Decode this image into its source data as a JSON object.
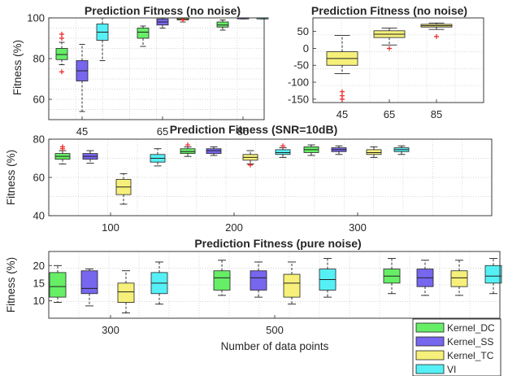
{
  "chart_data": [
    {
      "type": "box",
      "title": "Prediction Fitness (no noise)",
      "ylabel": "Fitness (%)",
      "xlabel": "",
      "ylim": [
        50,
        100
      ],
      "yticks": [
        60,
        80,
        100
      ],
      "x_ticks": [
        "45",
        "65",
        "85"
      ],
      "grid": true,
      "groups": [
        {
          "label": "45",
          "boxes": [
            {
              "series": "Kernel_DC",
              "whisker_low": 77,
              "q1": 79.5,
              "median": 82,
              "q3": 85,
              "whisker_high": 88,
              "outliers": [
                73.5,
                90,
                92
              ]
            },
            {
              "series": "Kernel_SS",
              "whisker_low": 54,
              "q1": 69,
              "median": 74,
              "q3": 79,
              "whisker_high": 87,
              "outliers": []
            },
            {
              "series": "VI",
              "whisker_low": 79,
              "q1": 89,
              "median": 93,
              "q3": 97,
              "whisker_high": 100,
              "outliers": []
            }
          ]
        },
        {
          "label": "65",
          "boxes": [
            {
              "series": "Kernel_DC",
              "whisker_low": 86,
              "q1": 90,
              "median": 93,
              "q3": 95,
              "whisker_high": 96,
              "outliers": []
            },
            {
              "series": "Kernel_SS",
              "whisker_low": 95,
              "q1": 96.5,
              "median": 98,
              "q3": 99.5,
              "whisker_high": 100,
              "outliers": []
            },
            {
              "series": "Kernel_TC",
              "whisker_low": 98,
              "q1": 99,
              "median": 99.5,
              "q3": 100,
              "whisker_high": 100,
              "outliers": [
                99
              ]
            }
          ]
        },
        {
          "label": "85",
          "boxes": [
            {
              "series": "Kernel_DC",
              "whisker_low": 94,
              "q1": 95.5,
              "median": 96.5,
              "q3": 98,
              "whisker_high": 99,
              "outliers": []
            },
            {
              "series": "Kernel_SS",
              "whisker_low": 99.5,
              "q1": 99.8,
              "median": 100,
              "q3": 100,
              "whisker_high": 100,
              "outliers": []
            },
            {
              "series": "VI",
              "whisker_low": 99.5,
              "q1": 99.8,
              "median": 100,
              "q3": 100,
              "whisker_high": 100,
              "outliers": []
            }
          ]
        }
      ]
    },
    {
      "type": "box",
      "title": "Prediction Fitness (no noise)",
      "ylabel": "",
      "xlabel": "",
      "ylim": [
        -160,
        90
      ],
      "yticks": [
        -150,
        -100,
        -50,
        0,
        50
      ],
      "x_ticks": [
        "45",
        "65",
        "85"
      ],
      "grid": true,
      "groups": [
        {
          "label": "45",
          "boxes": [
            {
              "series": "Kernel_TC",
              "whisker_low": -75,
              "q1": -50,
              "median": -30,
              "q3": -10,
              "whisker_high": 38,
              "outliers": [
                -128,
                -140,
                -150
              ]
            }
          ]
        },
        {
          "label": "65",
          "boxes": [
            {
              "series": "Kernel_TC",
              "whisker_low": 10,
              "q1": 32,
              "median": 42,
              "q3": 52,
              "whisker_high": 60,
              "outliers": [
                0
              ]
            }
          ]
        },
        {
          "label": "85",
          "boxes": [
            {
              "series": "Kernel_TC",
              "whisker_low": 56,
              "q1": 63,
              "median": 67,
              "q3": 71,
              "whisker_high": 75,
              "outliers": [
                35
              ]
            }
          ]
        }
      ]
    },
    {
      "type": "box",
      "title": "Prediction Fitness (SNR=10dB)",
      "ylabel": "Fitness (%)",
      "xlabel": "",
      "ylim": [
        40,
        80
      ],
      "yticks": [
        40,
        60,
        80
      ],
      "x_ticks": [
        "100",
        "200",
        "300"
      ],
      "grid": true,
      "groups": [
        {
          "label": "100",
          "boxes": [
            {
              "series": "Kernel_DC",
              "whisker_low": 67,
              "q1": 69.5,
              "median": 71,
              "q3": 72.5,
              "whisker_high": 74,
              "outliers": [
                75,
                76
              ]
            },
            {
              "series": "Kernel_SS",
              "whisker_low": 67.5,
              "q1": 69.5,
              "median": 71,
              "q3": 72.5,
              "whisker_high": 74,
              "outliers": []
            },
            {
              "series": "Kernel_TC",
              "whisker_low": 46,
              "q1": 51,
              "median": 55,
              "q3": 59,
              "whisker_high": 62,
              "outliers": []
            },
            {
              "series": "VI",
              "whisker_low": 66,
              "q1": 68,
              "median": 70,
              "q3": 72,
              "whisker_high": 75,
              "outliers": []
            }
          ]
        },
        {
          "label": "200",
          "boxes": [
            {
              "series": "Kernel_DC",
              "whisker_low": 71,
              "q1": 72.5,
              "median": 73.5,
              "q3": 75,
              "whisker_high": 76,
              "outliers": [
                77
              ]
            },
            {
              "series": "Kernel_SS",
              "whisker_low": 71.5,
              "q1": 72.5,
              "median": 74,
              "q3": 75,
              "whisker_high": 76,
              "outliers": []
            },
            {
              "series": "Kernel_TC",
              "whisker_low": 67,
              "q1": 69,
              "median": 70.5,
              "q3": 72,
              "whisker_high": 74,
              "outliers": [
                66.5
              ]
            },
            {
              "series": "VI",
              "whisker_low": 70.5,
              "q1": 72,
              "median": 73,
              "q3": 74.5,
              "whisker_high": 75.5,
              "outliers": [
                76.5
              ]
            }
          ]
        },
        {
          "label": "300",
          "boxes": [
            {
              "series": "Kernel_DC",
              "whisker_low": 71.5,
              "q1": 73,
              "median": 74.5,
              "q3": 76,
              "whisker_high": 77,
              "outliers": []
            },
            {
              "series": "Kernel_SS",
              "whisker_low": 72,
              "q1": 73.5,
              "median": 74.5,
              "q3": 75.5,
              "whisker_high": 76.5,
              "outliers": []
            },
            {
              "series": "Kernel_TC",
              "whisker_low": 70.5,
              "q1": 72,
              "median": 73,
              "q3": 74.5,
              "whisker_high": 76,
              "outliers": []
            },
            {
              "series": "VI",
              "whisker_low": 72,
              "q1": 73.5,
              "median": 74.5,
              "q3": 75.5,
              "whisker_high": 76.5,
              "outliers": []
            }
          ]
        }
      ]
    },
    {
      "type": "box",
      "title": "Prediction Fitness (pure noise)",
      "ylabel": "Fitness (%)",
      "xlabel": "Number of data points",
      "ylim": [
        5,
        24
      ],
      "yticks": [
        10,
        15,
        20
      ],
      "x_ticks": [
        "300",
        "500"
      ],
      "grid": true,
      "groups": [
        {
          "label": "300",
          "boxes": [
            {
              "series": "Kernel_DC",
              "whisker_low": 9.5,
              "q1": 11,
              "median": 14,
              "q3": 18,
              "whisker_high": 20,
              "outliers": []
            },
            {
              "series": "Kernel_SS",
              "whisker_low": 8.5,
              "q1": 12,
              "median": 13.5,
              "q3": 18.5,
              "whisker_high": 19,
              "outliers": []
            },
            {
              "series": "Kernel_TC",
              "whisker_low": 6.5,
              "q1": 9.5,
              "median": 12.5,
              "q3": 15,
              "whisker_high": 18.5,
              "outliers": []
            },
            {
              "series": "VI",
              "whisker_low": 9,
              "q1": 12,
              "median": 15,
              "q3": 18,
              "whisker_high": 21,
              "outliers": []
            }
          ]
        },
        {
          "label": "500",
          "boxes": [
            {
              "series": "Kernel_DC",
              "whisker_low": 11.5,
              "q1": 13,
              "median": 16.5,
              "q3": 18.5,
              "whisker_high": 21.5,
              "outliers": []
            },
            {
              "series": "Kernel_SS",
              "whisker_low": 11,
              "q1": 13,
              "median": 16.5,
              "q3": 18.5,
              "whisker_high": 21,
              "outliers": []
            },
            {
              "series": "Kernel_TC",
              "whisker_low": 9,
              "q1": 11,
              "median": 15,
              "q3": 17.5,
              "whisker_high": 21,
              "outliers": []
            },
            {
              "series": "VI",
              "whisker_low": 11,
              "q1": 13,
              "median": 16,
              "q3": 19,
              "whisker_high": 22,
              "outliers": []
            }
          ]
        },
        {
          "label": "",
          "boxes": [
            {
              "series": "Kernel_DC",
              "whisker_low": 12,
              "q1": 15,
              "median": 17,
              "q3": 19,
              "whisker_high": 22,
              "outliers": []
            },
            {
              "series": "Kernel_SS",
              "whisker_low": 11.5,
              "q1": 14,
              "median": 16.5,
              "q3": 19,
              "whisker_high": 21.5,
              "outliers": []
            },
            {
              "series": "Kernel_TC",
              "whisker_low": 11.5,
              "q1": 14,
              "median": 16.5,
              "q3": 18.5,
              "whisker_high": 21.5,
              "outliers": []
            },
            {
              "series": "VI",
              "whisker_low": 12,
              "q1": 15,
              "median": 17,
              "q3": 20,
              "whisker_high": 22,
              "outliers": []
            }
          ]
        }
      ]
    }
  ],
  "legend": {
    "items": [
      {
        "series": "Kernel_DC",
        "label": "Kernel_DC",
        "color": "#66ee66"
      },
      {
        "series": "Kernel_SS",
        "label": "Kernel_SS",
        "color": "#7766ee"
      },
      {
        "series": "Kernel_TC",
        "label": "Kernel_TC",
        "color": "#f6f07a"
      },
      {
        "series": "VI",
        "label": "VI",
        "color": "#55f0f6"
      }
    ],
    "placement": "bottom-right"
  },
  "colors": {
    "outlier": "#ee2222",
    "median": "#222222",
    "grid": "#c8c8c8",
    "axis": "#262626"
  }
}
